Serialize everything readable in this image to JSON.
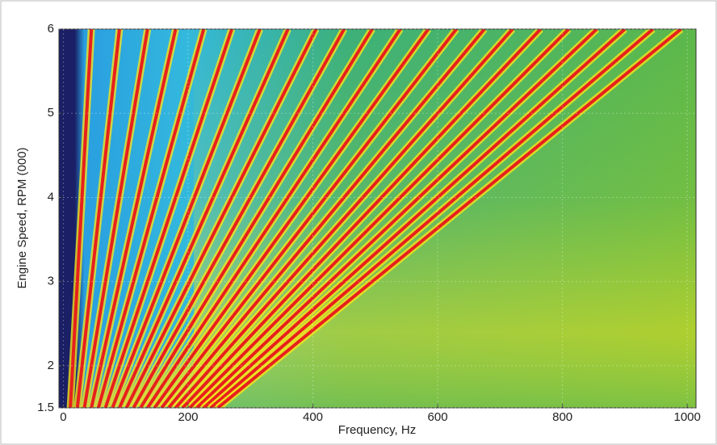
{
  "chart_data": {
    "type": "line",
    "xlabel": "Frequency, Hz",
    "ylabel": "Engine Speed, RPM (000)",
    "xlim": [
      -7,
      1014
    ],
    "ylim": [
      1.5,
      6
    ],
    "xticks": [
      0,
      200,
      400,
      600,
      800,
      1000
    ],
    "yticks": [
      {
        "value": 1.5,
        "label": "1.5"
      },
      2,
      3,
      4,
      5,
      6
    ],
    "grid": true,
    "series": [
      {
        "color": "#e8201c",
        "x": [
          11.25,
          45
        ],
        "values": [
          1.5,
          6
        ]
      },
      {
        "color": "#e8201c",
        "x": [
          22.5,
          90
        ],
        "values": [
          1.5,
          6
        ]
      },
      {
        "color": "#e8201c",
        "x": [
          33.75,
          135
        ],
        "values": [
          1.5,
          6
        ]
      },
      {
        "color": "#e8201c",
        "x": [
          45,
          180
        ],
        "values": [
          1.5,
          6
        ]
      },
      {
        "color": "#e8201c",
        "x": [
          56.25,
          225
        ],
        "values": [
          1.5,
          6
        ]
      },
      {
        "color": "#e8201c",
        "x": [
          67.5,
          270
        ],
        "values": [
          1.5,
          6
        ]
      },
      {
        "color": "#e8201c",
        "x": [
          78.75,
          315
        ],
        "values": [
          1.5,
          6
        ]
      },
      {
        "color": "#e8201c",
        "x": [
          90,
          360
        ],
        "values": [
          1.5,
          6
        ]
      },
      {
        "color": "#e8201c",
        "x": [
          101.25,
          405
        ],
        "values": [
          1.5,
          6
        ]
      },
      {
        "color": "#e8201c",
        "x": [
          112.5,
          450
        ],
        "values": [
          1.5,
          6
        ]
      },
      {
        "color": "#e8201c",
        "x": [
          123.75,
          495
        ],
        "values": [
          1.5,
          6
        ]
      },
      {
        "color": "#e8201c",
        "x": [
          135,
          540
        ],
        "values": [
          1.5,
          6
        ]
      },
      {
        "color": "#e8201c",
        "x": [
          146.25,
          585
        ],
        "values": [
          1.5,
          6
        ]
      },
      {
        "color": "#e8201c",
        "x": [
          157.5,
          630
        ],
        "values": [
          1.5,
          6
        ]
      },
      {
        "color": "#e8201c",
        "x": [
          168.75,
          675
        ],
        "values": [
          1.5,
          6
        ]
      },
      {
        "color": "#e8201c",
        "x": [
          180,
          720
        ],
        "values": [
          1.5,
          6
        ]
      },
      {
        "color": "#e8201c",
        "x": [
          191.25,
          765
        ],
        "values": [
          1.5,
          6
        ]
      },
      {
        "color": "#e8201c",
        "x": [
          202.5,
          810
        ],
        "values": [
          1.5,
          6
        ]
      },
      {
        "color": "#e8201c",
        "x": [
          213.75,
          855
        ],
        "values": [
          1.5,
          6
        ]
      },
      {
        "color": "#e8201c",
        "x": [
          225,
          900
        ],
        "values": [
          1.5,
          6
        ]
      },
      {
        "color": "#e8201c",
        "x": [
          236.25,
          945
        ],
        "values": [
          1.5,
          6
        ]
      },
      {
        "color": "#e8201c",
        "x": [
          247.5,
          990
        ],
        "values": [
          1.5,
          6
        ]
      }
    ]
  }
}
